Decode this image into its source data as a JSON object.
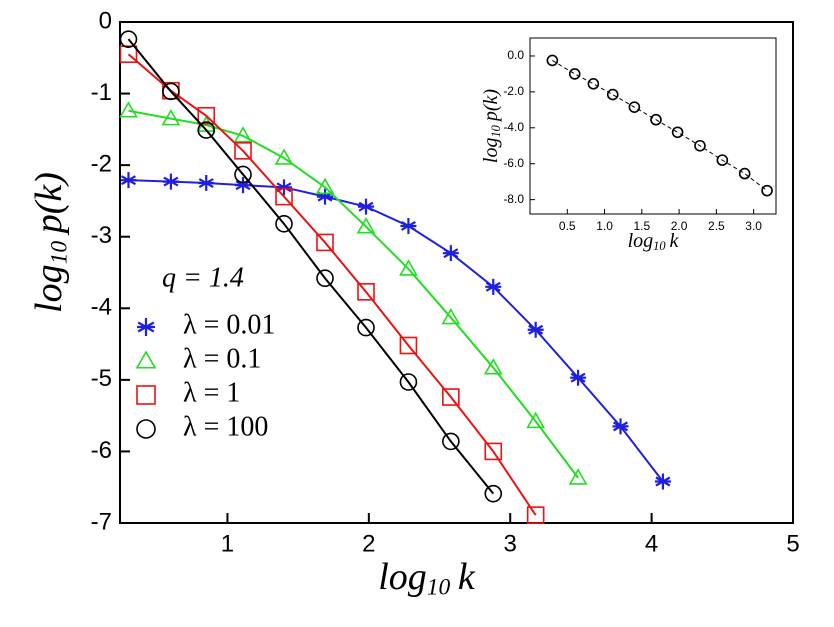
{
  "chart_data": [
    {
      "type": "line",
      "xlabel": {
        "base": "log",
        "sub": "10",
        "rest": "k"
      },
      "ylabel": {
        "base": "log",
        "sub": "10",
        "rest": "p(k)"
      },
      "xlim": [
        0.24,
        5
      ],
      "ylim": [
        -7,
        0
      ],
      "xticks": [
        1,
        2,
        3,
        4,
        5
      ],
      "yticks": [
        0,
        -1,
        -2,
        -3,
        -4,
        -5,
        -6,
        -7
      ],
      "legend_title": "q = 1.4",
      "x": [
        0.3,
        0.6,
        0.85,
        1.11,
        1.4,
        1.69,
        1.98,
        2.28,
        2.58,
        2.88,
        3.18,
        3.48,
        3.78,
        4.08
      ],
      "series": [
        {
          "name": "λ = 0.01",
          "color": "#1f1fe0",
          "marker": "asterisk",
          "values": [
            -2.21,
            -2.23,
            -2.25,
            -2.28,
            -2.31,
            -2.44,
            -2.58,
            -2.85,
            -3.23,
            -3.7,
            -4.3,
            -4.97,
            -5.65,
            -6.42
          ]
        },
        {
          "name": "λ = 0.1",
          "color": "#22dd22",
          "marker": "triangle",
          "values": [
            -1.24,
            -1.35,
            -1.44,
            -1.59,
            -1.9,
            -2.31,
            -2.86,
            -3.45,
            -4.13,
            -4.83,
            -5.58,
            -6.37,
            null,
            null
          ]
        },
        {
          "name": "λ = 1",
          "color": "#ee1111",
          "marker": "square",
          "values": [
            -0.45,
            -0.96,
            -1.31,
            -1.8,
            -2.44,
            -3.08,
            -3.77,
            -4.52,
            -5.24,
            -6.0,
            -6.89,
            null,
            null,
            null
          ]
        },
        {
          "name": "λ = 100",
          "color": "#000000",
          "marker": "circle",
          "values": [
            -0.24,
            -0.97,
            -1.51,
            -2.13,
            -2.82,
            -3.58,
            -4.27,
            -5.03,
            -5.86,
            -6.59,
            null,
            null,
            null,
            null
          ]
        }
      ]
    },
    {
      "type": "line",
      "xlabel": {
        "base": "log",
        "sub": "10",
        "rest": "k"
      },
      "ylabel": {
        "base": "log",
        "sub": "10",
        "rest": "p(k)"
      },
      "xlim": [
        0,
        3.3
      ],
      "ylim": [
        -8.8,
        1
      ],
      "xticks": [
        {
          "value": 0.5,
          "label": "0.5"
        },
        {
          "value": 1,
          "label": "1.0"
        },
        {
          "value": 1.5,
          "label": "1.5"
        },
        {
          "value": 2,
          "label": "2.0"
        },
        {
          "value": 2.5,
          "label": "2.5"
        },
        {
          "value": 3,
          "label": "3.0"
        }
      ],
      "yticks": [
        {
          "value": 0,
          "label": "0.0"
        },
        {
          "value": -2,
          "label": "-2.0"
        },
        {
          "value": -4,
          "label": "-4.0"
        },
        {
          "value": -6,
          "label": "-6.0"
        },
        {
          "value": -8,
          "label": "-8.0"
        }
      ],
      "x": [
        0.3,
        0.6,
        0.85,
        1.11,
        1.4,
        1.69,
        1.98,
        2.28,
        2.58,
        2.88,
        3.18
      ],
      "series": [
        {
          "color": "#000000",
          "marker": "circle",
          "dashed": true,
          "values": [
            -0.25,
            -1.0,
            -1.55,
            -2.15,
            -2.85,
            -3.55,
            -4.25,
            -5.0,
            -5.8,
            -6.55,
            -7.5
          ]
        }
      ]
    }
  ]
}
